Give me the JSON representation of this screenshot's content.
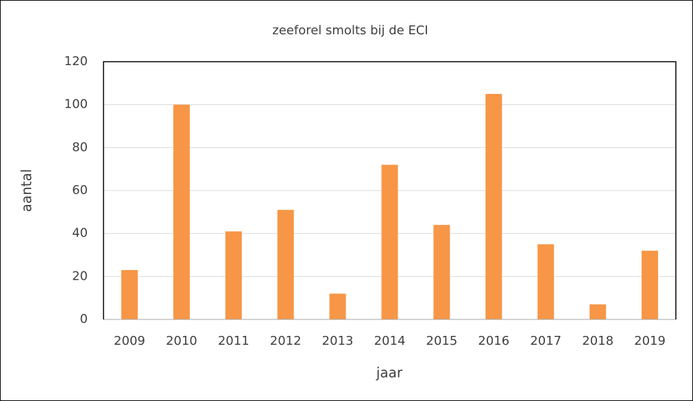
{
  "chart_data": {
    "type": "bar",
    "title": "zeeforel smolts bij de ECI",
    "x_label": "jaar",
    "y_label": "aantal",
    "categories": [
      "2009",
      "2010",
      "2011",
      "2012",
      "2013",
      "2014",
      "2015",
      "2016",
      "2017",
      "2018",
      "2019"
    ],
    "values": [
      23,
      100,
      41,
      51,
      12,
      72,
      44,
      105,
      35,
      7,
      32
    ],
    "color": "#f79646",
    "ylim": [
      0,
      120
    ],
    "yticks": [
      0,
      20,
      40,
      60,
      80,
      100,
      120
    ],
    "grid": true
  }
}
